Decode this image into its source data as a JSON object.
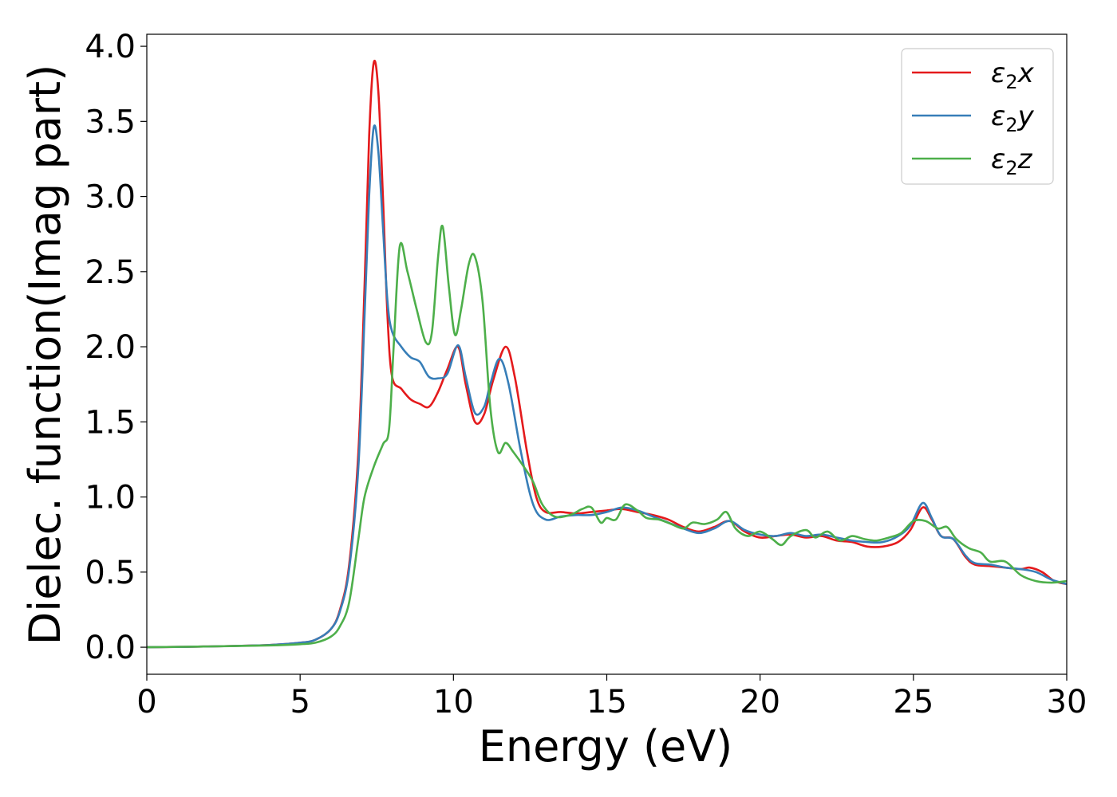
{
  "chart_data": {
    "type": "line",
    "title": "",
    "xlabel": "Energy (eV)",
    "ylabel": "Dielec. function(Imag part)",
    "xlim": [
      0,
      30
    ],
    "ylim": [
      -0.18,
      4.08
    ],
    "x_ticks": [
      "0",
      "5",
      "10",
      "15",
      "20",
      "25",
      "30"
    ],
    "y_ticks": [
      "0.0",
      "0.5",
      "1.0",
      "1.5",
      "2.0",
      "2.5",
      "3.0",
      "3.5",
      "4.0"
    ],
    "grid": false,
    "legend_position": "top-right",
    "series": [
      {
        "name": "ε₂x",
        "legend_base": "ε",
        "legend_sub": "2",
        "legend_suffix": "x",
        "color": "#e41a1c",
        "points": [
          [
            0,
            0.0
          ],
          [
            2,
            0.005
          ],
          [
            4,
            0.015
          ],
          [
            5,
            0.03
          ],
          [
            5.5,
            0.05
          ],
          [
            6,
            0.12
          ],
          [
            6.3,
            0.25
          ],
          [
            6.6,
            0.55
          ],
          [
            6.9,
            1.3
          ],
          [
            7.1,
            2.4
          ],
          [
            7.25,
            3.4
          ],
          [
            7.4,
            3.89
          ],
          [
            7.55,
            3.7
          ],
          [
            7.7,
            3.0
          ],
          [
            7.85,
            2.2
          ],
          [
            8.0,
            1.8
          ],
          [
            8.3,
            1.72
          ],
          [
            8.6,
            1.65
          ],
          [
            8.9,
            1.62
          ],
          [
            9.2,
            1.6
          ],
          [
            9.5,
            1.7
          ],
          [
            9.8,
            1.85
          ],
          [
            10.15,
            2.0
          ],
          [
            10.4,
            1.75
          ],
          [
            10.7,
            1.5
          ],
          [
            11.0,
            1.55
          ],
          [
            11.3,
            1.78
          ],
          [
            11.7,
            2.0
          ],
          [
            12.0,
            1.8
          ],
          [
            12.4,
            1.3
          ],
          [
            12.7,
            1.0
          ],
          [
            13.0,
            0.9
          ],
          [
            13.5,
            0.9
          ],
          [
            14.0,
            0.89
          ],
          [
            14.5,
            0.9
          ],
          [
            15.0,
            0.91
          ],
          [
            15.5,
            0.92
          ],
          [
            16.0,
            0.9
          ],
          [
            16.5,
            0.88
          ],
          [
            17.0,
            0.85
          ],
          [
            17.5,
            0.8
          ],
          [
            18.0,
            0.77
          ],
          [
            18.5,
            0.8
          ],
          [
            19.0,
            0.84
          ],
          [
            19.5,
            0.77
          ],
          [
            20.0,
            0.73
          ],
          [
            20.5,
            0.74
          ],
          [
            21.0,
            0.75
          ],
          [
            21.5,
            0.73
          ],
          [
            22.0,
            0.74
          ],
          [
            22.5,
            0.71
          ],
          [
            23.0,
            0.7
          ],
          [
            23.5,
            0.67
          ],
          [
            24.0,
            0.67
          ],
          [
            24.5,
            0.7
          ],
          [
            24.9,
            0.78
          ],
          [
            25.3,
            0.93
          ],
          [
            25.6,
            0.85
          ],
          [
            25.9,
            0.74
          ],
          [
            26.3,
            0.72
          ],
          [
            26.7,
            0.6
          ],
          [
            27.0,
            0.55
          ],
          [
            27.5,
            0.54
          ],
          [
            28.0,
            0.53
          ],
          [
            28.5,
            0.52
          ],
          [
            28.8,
            0.53
          ],
          [
            29.2,
            0.5
          ],
          [
            29.6,
            0.44
          ],
          [
            30,
            0.42
          ]
        ]
      },
      {
        "name": "ε₂y",
        "legend_base": "ε",
        "legend_sub": "2",
        "legend_suffix": "y",
        "color": "#377eb8",
        "points": [
          [
            0,
            0.0
          ],
          [
            2,
            0.005
          ],
          [
            4,
            0.015
          ],
          [
            5,
            0.03
          ],
          [
            5.5,
            0.05
          ],
          [
            6,
            0.12
          ],
          [
            6.3,
            0.24
          ],
          [
            6.6,
            0.52
          ],
          [
            6.9,
            1.2
          ],
          [
            7.1,
            2.2
          ],
          [
            7.25,
            3.0
          ],
          [
            7.4,
            3.46
          ],
          [
            7.55,
            3.3
          ],
          [
            7.7,
            2.8
          ],
          [
            7.85,
            2.3
          ],
          [
            8.0,
            2.1
          ],
          [
            8.3,
            2.0
          ],
          [
            8.6,
            1.93
          ],
          [
            8.9,
            1.9
          ],
          [
            9.2,
            1.8
          ],
          [
            9.5,
            1.79
          ],
          [
            9.8,
            1.82
          ],
          [
            10.15,
            2.01
          ],
          [
            10.4,
            1.8
          ],
          [
            10.7,
            1.56
          ],
          [
            11.0,
            1.6
          ],
          [
            11.2,
            1.75
          ],
          [
            11.5,
            1.92
          ],
          [
            11.8,
            1.75
          ],
          [
            12.2,
            1.3
          ],
          [
            12.6,
            0.95
          ],
          [
            13.0,
            0.85
          ],
          [
            13.5,
            0.87
          ],
          [
            14.0,
            0.88
          ],
          [
            14.5,
            0.88
          ],
          [
            15.0,
            0.9
          ],
          [
            15.5,
            0.93
          ],
          [
            16.0,
            0.91
          ],
          [
            16.5,
            0.87
          ],
          [
            17.0,
            0.83
          ],
          [
            17.5,
            0.79
          ],
          [
            18.0,
            0.76
          ],
          [
            18.5,
            0.79
          ],
          [
            19.0,
            0.84
          ],
          [
            19.5,
            0.78
          ],
          [
            20.0,
            0.75
          ],
          [
            20.5,
            0.74
          ],
          [
            21.0,
            0.76
          ],
          [
            21.5,
            0.74
          ],
          [
            22.0,
            0.75
          ],
          [
            22.5,
            0.73
          ],
          [
            23.0,
            0.71
          ],
          [
            23.5,
            0.7
          ],
          [
            24.0,
            0.7
          ],
          [
            24.5,
            0.74
          ],
          [
            24.9,
            0.81
          ],
          [
            25.3,
            0.96
          ],
          [
            25.6,
            0.86
          ],
          [
            25.9,
            0.74
          ],
          [
            26.3,
            0.72
          ],
          [
            26.7,
            0.61
          ],
          [
            27.0,
            0.56
          ],
          [
            27.5,
            0.55
          ],
          [
            28.0,
            0.53
          ],
          [
            28.5,
            0.52
          ],
          [
            29.0,
            0.5
          ],
          [
            29.5,
            0.45
          ],
          [
            30,
            0.42
          ]
        ]
      },
      {
        "name": "ε₂z",
        "legend_base": "ε",
        "legend_sub": "2",
        "legend_suffix": "z",
        "color": "#4daf4a",
        "points": [
          [
            0,
            0.0
          ],
          [
            2,
            0.005
          ],
          [
            4,
            0.012
          ],
          [
            5,
            0.02
          ],
          [
            5.5,
            0.03
          ],
          [
            6,
            0.07
          ],
          [
            6.3,
            0.14
          ],
          [
            6.6,
            0.3
          ],
          [
            6.9,
            0.72
          ],
          [
            7.1,
            1.0
          ],
          [
            7.4,
            1.2
          ],
          [
            7.7,
            1.35
          ],
          [
            7.9,
            1.45
          ],
          [
            8.05,
            2.0
          ],
          [
            8.25,
            2.67
          ],
          [
            8.5,
            2.5
          ],
          [
            8.8,
            2.25
          ],
          [
            9.1,
            2.03
          ],
          [
            9.3,
            2.1
          ],
          [
            9.5,
            2.6
          ],
          [
            9.65,
            2.8
          ],
          [
            9.85,
            2.4
          ],
          [
            10.05,
            2.08
          ],
          [
            10.25,
            2.25
          ],
          [
            10.5,
            2.55
          ],
          [
            10.7,
            2.6
          ],
          [
            10.95,
            2.3
          ],
          [
            11.2,
            1.6
          ],
          [
            11.45,
            1.3
          ],
          [
            11.7,
            1.36
          ],
          [
            11.95,
            1.3
          ],
          [
            12.3,
            1.2
          ],
          [
            12.6,
            1.1
          ],
          [
            12.9,
            0.95
          ],
          [
            13.3,
            0.87
          ],
          [
            13.8,
            0.88
          ],
          [
            14.2,
            0.92
          ],
          [
            14.5,
            0.93
          ],
          [
            14.8,
            0.83
          ],
          [
            15.0,
            0.86
          ],
          [
            15.3,
            0.85
          ],
          [
            15.6,
            0.95
          ],
          [
            16.0,
            0.91
          ],
          [
            16.3,
            0.86
          ],
          [
            16.7,
            0.85
          ],
          [
            17.1,
            0.82
          ],
          [
            17.5,
            0.79
          ],
          [
            17.8,
            0.83
          ],
          [
            18.2,
            0.82
          ],
          [
            18.6,
            0.85
          ],
          [
            18.9,
            0.9
          ],
          [
            19.2,
            0.79
          ],
          [
            19.6,
            0.74
          ],
          [
            20.0,
            0.77
          ],
          [
            20.4,
            0.72
          ],
          [
            20.7,
            0.68
          ],
          [
            21.0,
            0.74
          ],
          [
            21.5,
            0.78
          ],
          [
            21.8,
            0.73
          ],
          [
            22.2,
            0.77
          ],
          [
            22.6,
            0.71
          ],
          [
            23.0,
            0.74
          ],
          [
            23.4,
            0.72
          ],
          [
            23.8,
            0.71
          ],
          [
            24.2,
            0.73
          ],
          [
            24.6,
            0.76
          ],
          [
            25.0,
            0.84
          ],
          [
            25.4,
            0.84
          ],
          [
            25.8,
            0.79
          ],
          [
            26.1,
            0.8
          ],
          [
            26.4,
            0.72
          ],
          [
            26.8,
            0.66
          ],
          [
            27.2,
            0.63
          ],
          [
            27.5,
            0.57
          ],
          [
            28.0,
            0.57
          ],
          [
            28.5,
            0.48
          ],
          [
            29.0,
            0.44
          ],
          [
            29.5,
            0.43
          ],
          [
            30,
            0.44
          ]
        ]
      }
    ]
  }
}
